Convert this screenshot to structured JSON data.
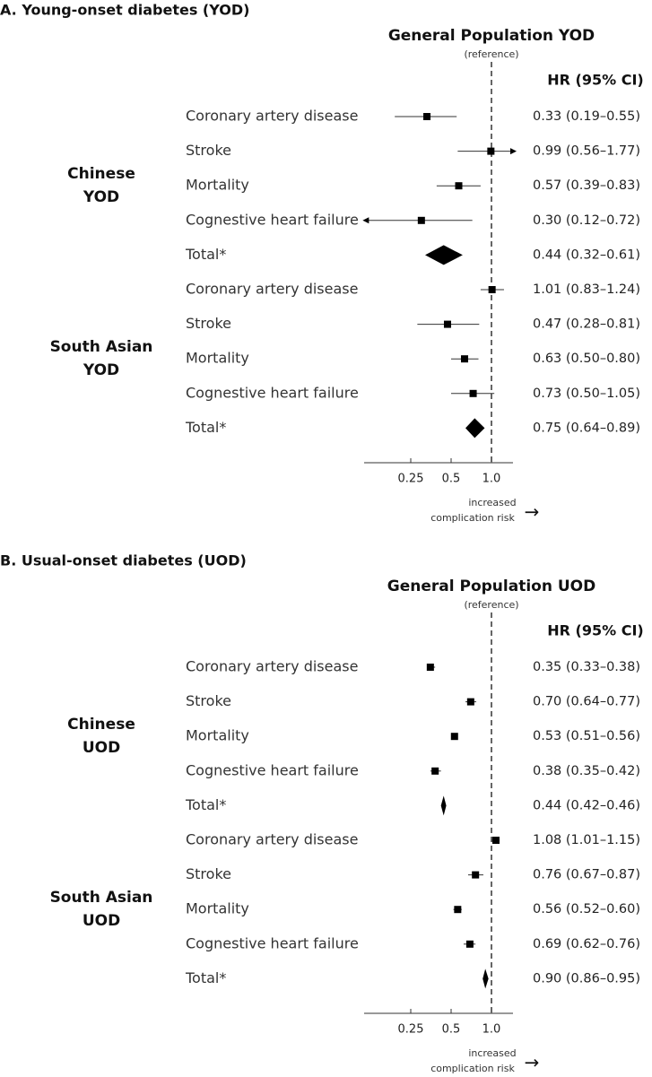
{
  "chart_data": [
    {
      "type": "forest",
      "panel_title": "A. Young-onset diabetes (YOD)",
      "reference_label": "General Population YOD",
      "reference_note": "(reference)",
      "hr_header": "HR (95% CI)",
      "x_ticks": [
        "0.25",
        "0.5",
        "1.0"
      ],
      "x_scale": "log",
      "reference_value": 1.0,
      "footer_note": [
        "increased",
        "complication risk"
      ],
      "footer_arrow": "→",
      "groups": [
        {
          "label": [
            "Chinese",
            "YOD"
          ],
          "rows": [
            {
              "outcome": "Coronary artery disease",
              "hr": 0.33,
              "lo": 0.19,
              "hi": 0.55,
              "text": "0.33 (0.19–0.55)",
              "marker": "square"
            },
            {
              "outcome": "Stroke",
              "hr": 0.99,
              "lo": 0.56,
              "hi": 1.77,
              "text": "0.99 (0.56–1.77)",
              "marker": "square",
              "arrow_right": true
            },
            {
              "outcome": "Mortality",
              "hr": 0.57,
              "lo": 0.39,
              "hi": 0.83,
              "text": "0.57 (0.39–0.83)",
              "marker": "square"
            },
            {
              "outcome": "Cognestive heart failure",
              "hr": 0.3,
              "lo": 0.12,
              "hi": 0.72,
              "text": "0.30 (0.12–0.72)",
              "marker": "square",
              "arrow_left": true
            },
            {
              "outcome": "Total*",
              "hr": 0.44,
              "lo": 0.32,
              "hi": 0.61,
              "text": "0.44 (0.32–0.61)",
              "marker": "diamond"
            }
          ]
        },
        {
          "label": [
            "South Asian",
            "YOD"
          ],
          "rows": [
            {
              "outcome": "Coronary artery disease",
              "hr": 1.01,
              "lo": 0.83,
              "hi": 1.24,
              "text": "1.01 (0.83–1.24)",
              "marker": "square"
            },
            {
              "outcome": "Stroke",
              "hr": 0.47,
              "lo": 0.28,
              "hi": 0.81,
              "text": "0.47 (0.28–0.81)",
              "marker": "square"
            },
            {
              "outcome": "Mortality",
              "hr": 0.63,
              "lo": 0.5,
              "hi": 0.8,
              "text": "0.63 (0.50–0.80)",
              "marker": "square"
            },
            {
              "outcome": "Cognestive heart failure",
              "hr": 0.73,
              "lo": 0.5,
              "hi": 1.05,
              "text": "0.73 (0.50–1.05)",
              "marker": "square"
            },
            {
              "outcome": "Total*",
              "hr": 0.75,
              "lo": 0.64,
              "hi": 0.89,
              "text": "0.75 (0.64–0.89)",
              "marker": "diamond"
            }
          ]
        }
      ]
    },
    {
      "type": "forest",
      "panel_title": "B. Usual-onset diabetes (UOD)",
      "reference_label": "General Population UOD",
      "reference_note": "(reference)",
      "hr_header": "HR (95% CI)",
      "x_ticks": [
        "0.25",
        "0.5",
        "1.0"
      ],
      "x_scale": "log",
      "reference_value": 1.0,
      "footer_note": [
        "increased",
        "complication risk"
      ],
      "footer_arrow": "→",
      "groups": [
        {
          "label": [
            "Chinese",
            "UOD"
          ],
          "rows": [
            {
              "outcome": "Coronary artery disease",
              "hr": 0.35,
              "lo": 0.33,
              "hi": 0.38,
              "text": "0.35 (0.33–0.38)",
              "marker": "square"
            },
            {
              "outcome": "Stroke",
              "hr": 0.7,
              "lo": 0.64,
              "hi": 0.77,
              "text": "0.70 (0.64–0.77)",
              "marker": "square"
            },
            {
              "outcome": "Mortality",
              "hr": 0.53,
              "lo": 0.51,
              "hi": 0.56,
              "text": "0.53 (0.51–0.56)",
              "marker": "square"
            },
            {
              "outcome": "Cognestive heart failure",
              "hr": 0.38,
              "lo": 0.35,
              "hi": 0.42,
              "text": "0.38 (0.35–0.42)",
              "marker": "square"
            },
            {
              "outcome": "Total*",
              "hr": 0.44,
              "lo": 0.42,
              "hi": 0.46,
              "text": "0.44 (0.42–0.46)",
              "marker": "diamond"
            }
          ]
        },
        {
          "label": [
            "South Asian",
            "UOD"
          ],
          "rows": [
            {
              "outcome": "Coronary artery disease",
              "hr": 1.08,
              "lo": 1.01,
              "hi": 1.15,
              "text": "1.08 (1.01–1.15)",
              "marker": "square"
            },
            {
              "outcome": "Stroke",
              "hr": 0.76,
              "lo": 0.67,
              "hi": 0.87,
              "text": "0.76 (0.67–0.87)",
              "marker": "square"
            },
            {
              "outcome": "Mortality",
              "hr": 0.56,
              "lo": 0.52,
              "hi": 0.6,
              "text": "0.56 (0.52–0.60)",
              "marker": "square"
            },
            {
              "outcome": "Cognestive heart failure",
              "hr": 0.69,
              "lo": 0.62,
              "hi": 0.76,
              "text": "0.69 (0.62–0.76)",
              "marker": "square"
            },
            {
              "outcome": "Total*",
              "hr": 0.9,
              "lo": 0.86,
              "hi": 0.95,
              "text": "0.90 (0.86–0.95)",
              "marker": "diamond"
            }
          ]
        }
      ]
    }
  ]
}
